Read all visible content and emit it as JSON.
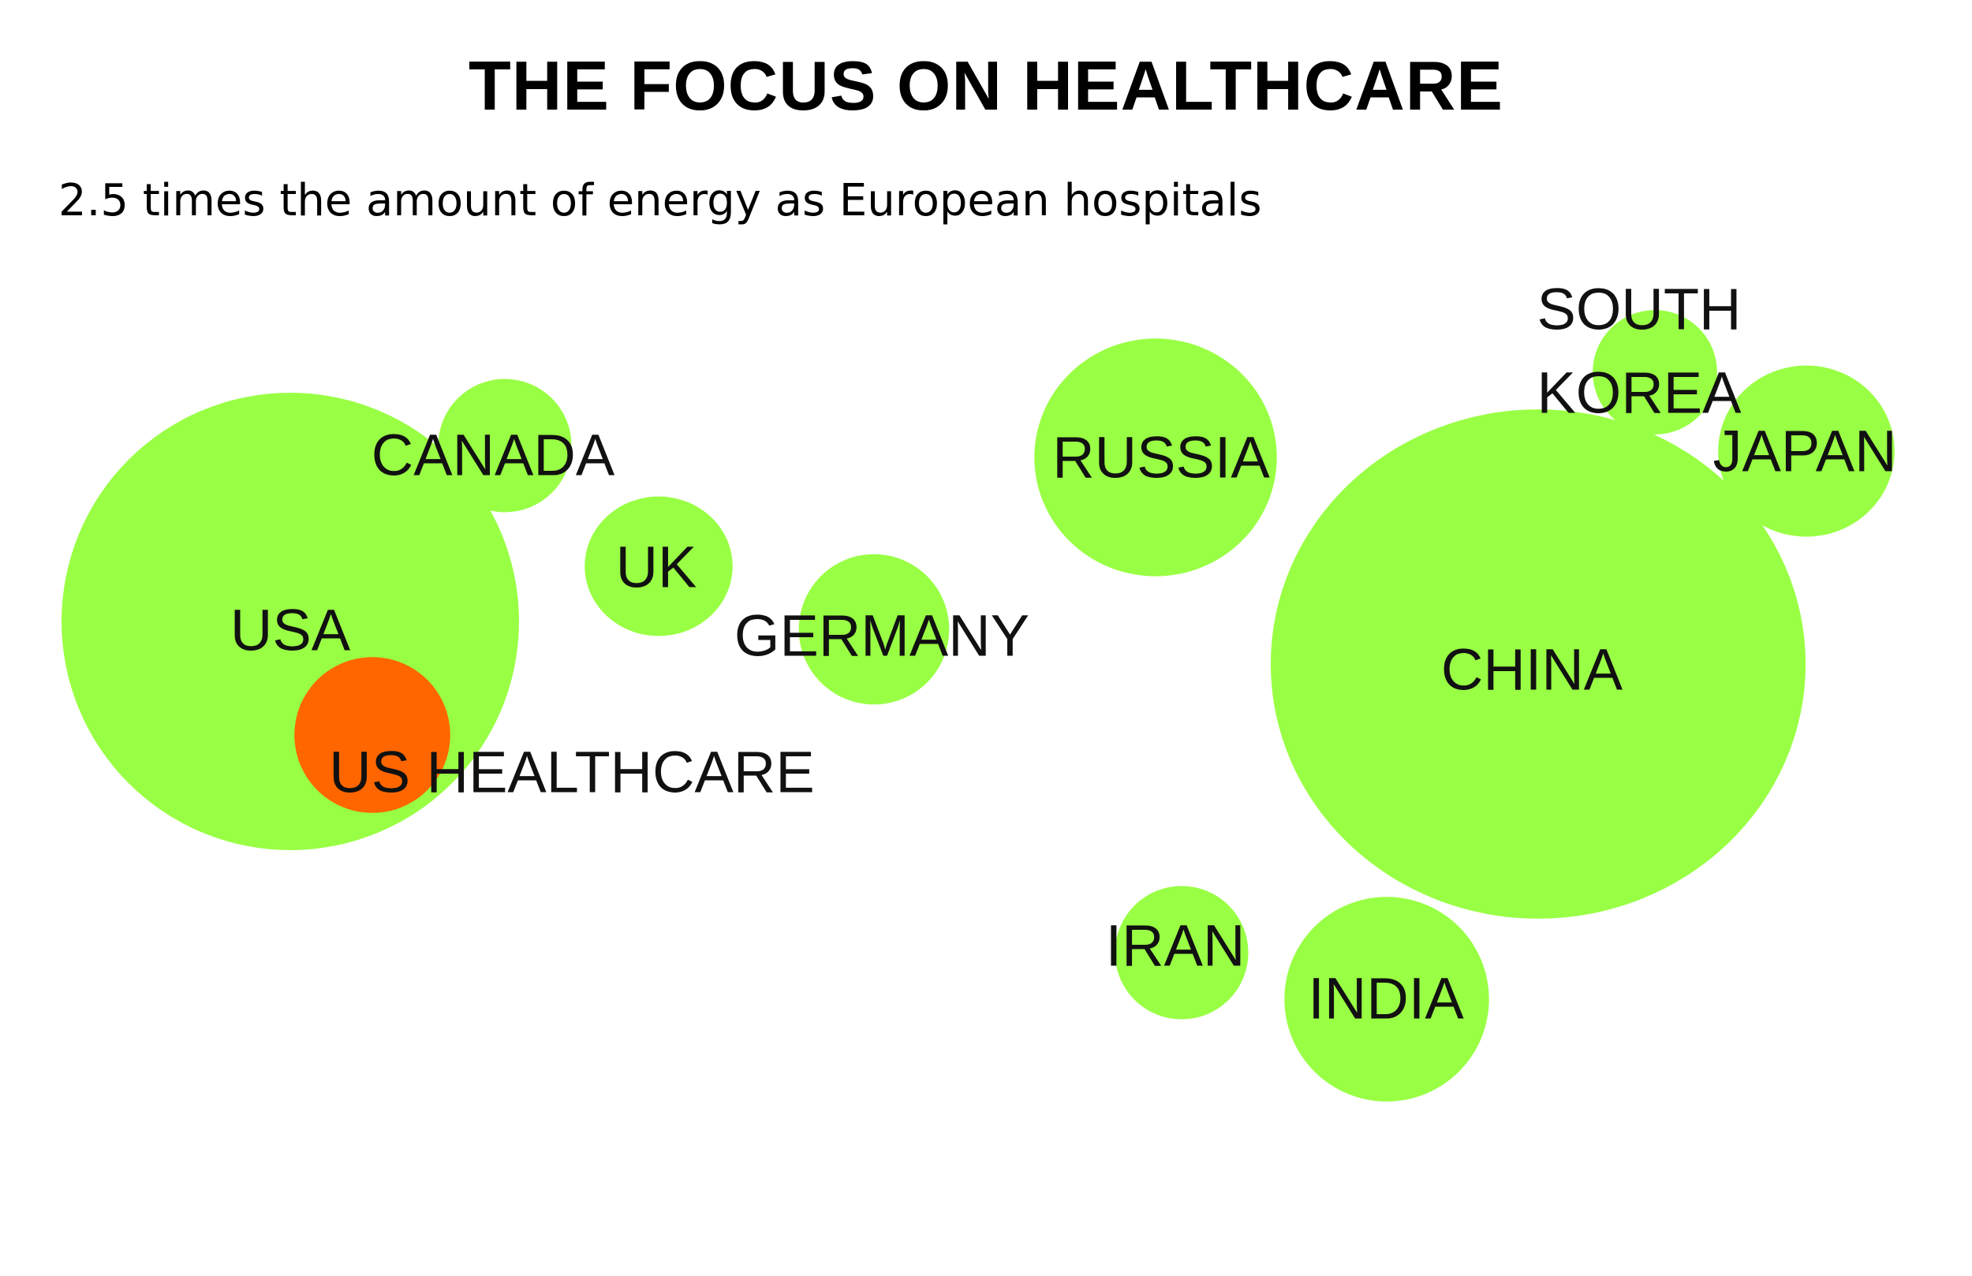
{
  "chart_data": {
    "type": "bubble",
    "title": "THE FOCUS ON HEALTHCARE",
    "subtitle": "2.5 times the amount of energy as European hospitals",
    "colors": {
      "country": "#99ff44",
      "highlight": "#ff6600"
    },
    "bubbles": [
      {
        "name": "USA",
        "label_lines": [
          "USA"
        ],
        "relative_size": 1.0,
        "highlight": false
      },
      {
        "name": "CANADA",
        "label_lines": [
          "CANADA"
        ],
        "relative_size": 0.085,
        "highlight": false
      },
      {
        "name": "UK",
        "label_lines": [
          "UK"
        ],
        "relative_size": 0.093,
        "highlight": false
      },
      {
        "name": "GERMANY",
        "label_lines": [
          "GERMANY"
        ],
        "relative_size": 0.108,
        "highlight": false
      },
      {
        "name": "RUSSIA",
        "label_lines": [
          "RUSSIA"
        ],
        "relative_size": 0.27,
        "highlight": false
      },
      {
        "name": "SOUTH KOREA",
        "label_lines": [
          "SOUTH",
          "KOREA"
        ],
        "relative_size": 0.074,
        "highlight": false
      },
      {
        "name": "JAPAN",
        "label_lines": [
          "JAPAN"
        ],
        "relative_size": 0.14,
        "highlight": false
      },
      {
        "name": "CHINA",
        "label_lines": [
          "CHINA"
        ],
        "relative_size": 1.24,
        "highlight": false
      },
      {
        "name": "IRAN",
        "label_lines": [
          "IRAN"
        ],
        "relative_size": 0.085,
        "highlight": false
      },
      {
        "name": "INDIA",
        "label_lines": [
          "INDIA"
        ],
        "relative_size": 0.2,
        "highlight": false
      },
      {
        "name": "US HEALTHCARE",
        "label_lines": [
          "US HEALTHCARE"
        ],
        "relative_size": 0.116,
        "highlight": true
      }
    ]
  }
}
